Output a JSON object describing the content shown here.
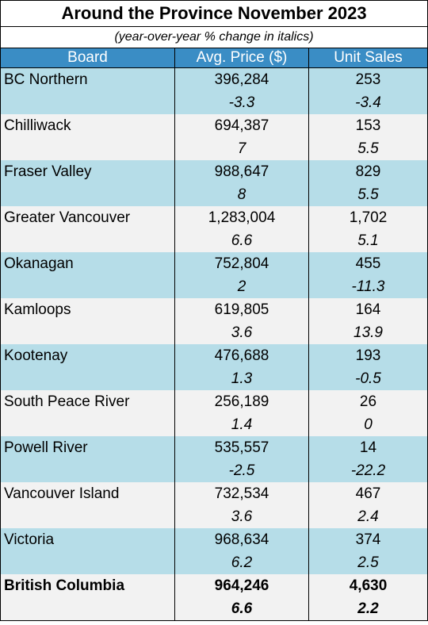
{
  "title": "Around the Province November 2023",
  "subtitle": "(year-over-year % change in italics)",
  "columns": [
    "Board",
    "Avg. Price ($)",
    "Unit Sales"
  ],
  "rows": [
    {
      "board": "BC Northern",
      "price": "396,284",
      "price_pct": "-3.3",
      "sales": "253",
      "sales_pct": "-3.4"
    },
    {
      "board": "Chilliwack",
      "price": "694,387",
      "price_pct": "7",
      "sales": "153",
      "sales_pct": "5.5"
    },
    {
      "board": "Fraser Valley",
      "price": "988,647",
      "price_pct": "8",
      "sales": "829",
      "sales_pct": "5.5"
    },
    {
      "board": "Greater Vancouver",
      "price": "1,283,004",
      "price_pct": "6.6",
      "sales": "1,702",
      "sales_pct": "5.1"
    },
    {
      "board": "Okanagan",
      "price": "752,804",
      "price_pct": "2",
      "sales": "455",
      "sales_pct": "-11.3"
    },
    {
      "board": "Kamloops",
      "price": "619,805",
      "price_pct": "3.6",
      "sales": "164",
      "sales_pct": "13.9"
    },
    {
      "board": "Kootenay",
      "price": "476,688",
      "price_pct": "1.3",
      "sales": "193",
      "sales_pct": "-0.5"
    },
    {
      "board": "South Peace River",
      "price": "256,189",
      "price_pct": "1.4",
      "sales": "26",
      "sales_pct": "0"
    },
    {
      "board": "Powell River",
      "price": "535,557",
      "price_pct": "-2.5",
      "sales": "14",
      "sales_pct": "-22.2"
    },
    {
      "board": "Vancouver Island",
      "price": "732,534",
      "price_pct": "3.6",
      "sales": "467",
      "sales_pct": "2.4"
    },
    {
      "board": "Victoria",
      "price": "968,634",
      "price_pct": "6.2",
      "sales": "374",
      "sales_pct": "2.5"
    },
    {
      "board": "British Columbia",
      "price": "964,246",
      "price_pct": "6.6",
      "sales": "4,630",
      "sales_pct": "2.2"
    }
  ],
  "colors": {
    "header": "#3a8dc5",
    "row_blue": "#b6dde8",
    "row_grey": "#f2f2f2"
  }
}
